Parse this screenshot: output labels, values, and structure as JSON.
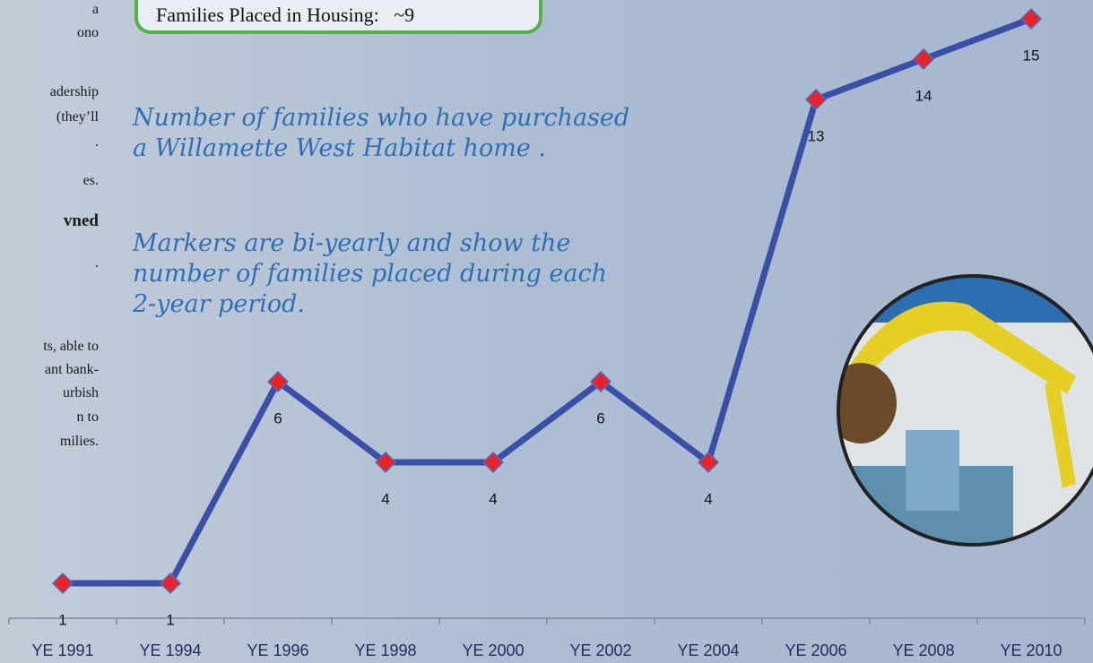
{
  "slide": {
    "callout": "Families Placed in Housing:   ~9",
    "side_text": [
      "a",
      "ono",
      "adership",
      "(they’ll",
      ".",
      "es.",
      "vned",
      ".",
      "ts, able to",
      "ant bank-",
      "urbish",
      "n to",
      "milies."
    ]
  },
  "chart_data": {
    "type": "line",
    "annotations": [
      "Number of families who have purchased",
      "a Willamette West Habitat home .",
      "Markers are bi-yearly and show the",
      "number of families placed during each",
      "2-year period."
    ],
    "categories": [
      "YE 1991",
      "YE 1994",
      "YE 1996",
      "YE 1998",
      "YE 2000",
      "YE 2002",
      "YE 2004",
      "YE 2006",
      "YE 2008",
      "YE 2010"
    ],
    "series": [
      {
        "color": "#3a4fa6",
        "marker_color": "#e8242a",
        "values": [
          1,
          1,
          6,
          4,
          4,
          6,
          4,
          13,
          14,
          15
        ]
      }
    ]
  }
}
